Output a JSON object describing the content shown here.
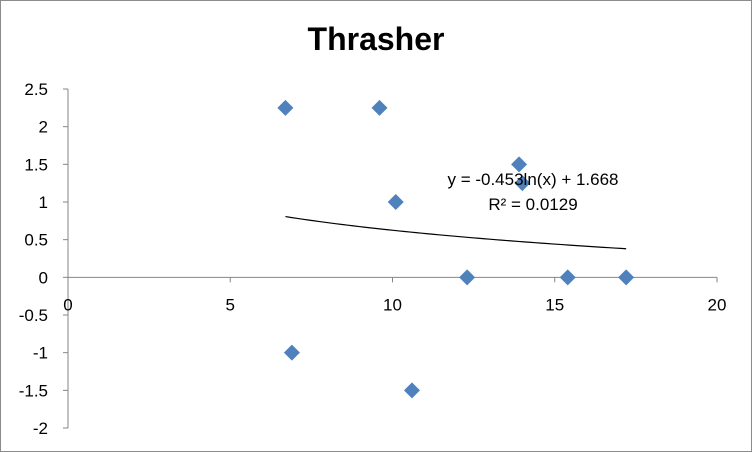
{
  "chart_data": {
    "type": "scatter",
    "title": "Thrasher",
    "xlabel": "",
    "ylabel": "",
    "xlim": [
      0,
      20
    ],
    "ylim": [
      -2,
      2.5
    ],
    "x_ticks": [
      0,
      5,
      10,
      15,
      20
    ],
    "y_ticks": [
      -2,
      -1.5,
      -1,
      -0.5,
      0,
      0.5,
      1,
      1.5,
      2,
      2.5
    ],
    "x_tick_labels": [
      "0",
      "5",
      "10",
      "15",
      "20"
    ],
    "y_tick_labels": [
      "-2",
      "-1.5",
      "-1",
      "-0.5",
      "0",
      "0.5",
      "1",
      "1.5",
      "2",
      "2.5"
    ],
    "grid": false,
    "legend": "none",
    "marker": "diamond",
    "marker_color": "#4f81bd",
    "points": [
      {
        "x": 6.7,
        "y": 2.25
      },
      {
        "x": 9.6,
        "y": 2.25
      },
      {
        "x": 13.9,
        "y": 1.5
      },
      {
        "x": 14.0,
        "y": 1.25
      },
      {
        "x": 10.1,
        "y": 1.0
      },
      {
        "x": 12.3,
        "y": 0
      },
      {
        "x": 15.4,
        "y": 0
      },
      {
        "x": 17.2,
        "y": 0
      },
      {
        "x": 6.9,
        "y": -1.0
      },
      {
        "x": 10.6,
        "y": -1.5
      }
    ],
    "trendline": {
      "type": "logarithmic",
      "a": -0.453,
      "b": 1.668,
      "x_range": [
        6.7,
        17.2
      ],
      "color": "#000000",
      "equation_label": "y = -0.453ln(x) + 1.668",
      "r2_label": "R² = 0.0129"
    }
  }
}
